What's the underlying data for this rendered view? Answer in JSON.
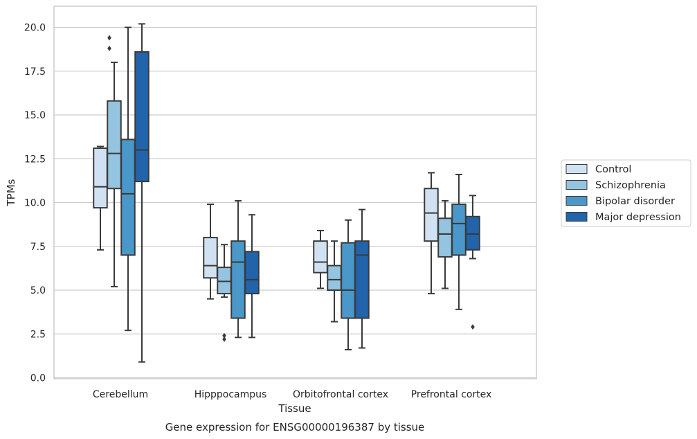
{
  "chart_data": {
    "type": "box",
    "title": "",
    "caption": "Gene expression for ENSG00000196387 by tissue",
    "xlabel": "Tissue",
    "ylabel": "TPMs",
    "ylim": [
      0,
      21.2
    ],
    "yticks": [
      "0.0",
      "2.5",
      "5.0",
      "7.5",
      "10.0",
      "12.5",
      "15.0",
      "17.5",
      "20.0"
    ],
    "grid": "horizontal",
    "legend_position": "right",
    "categories": [
      "Cerebellum",
      "Hipppocampus",
      "Orbitofrontal cortex",
      "Prefrontal cortex"
    ],
    "series": [
      {
        "name": "Control",
        "color": "#d0e1f2",
        "boxes": [
          {
            "whisker_low": 7.3,
            "q1": 9.7,
            "median": 10.9,
            "q3": 13.1,
            "whisker_high": 13.2,
            "outliers": []
          },
          {
            "whisker_low": 4.5,
            "q1": 5.7,
            "median": 6.4,
            "q3": 8.0,
            "whisker_high": 9.9,
            "outliers": []
          },
          {
            "whisker_low": 5.1,
            "q1": 6.0,
            "median": 6.6,
            "q3": 7.8,
            "whisker_high": 8.4,
            "outliers": []
          },
          {
            "whisker_low": 4.8,
            "q1": 7.8,
            "median": 9.4,
            "q3": 10.8,
            "whisker_high": 11.7,
            "outliers": []
          }
        ]
      },
      {
        "name": "Schizophrenia",
        "color": "#94c4df",
        "boxes": [
          {
            "whisker_low": 5.2,
            "q1": 10.8,
            "median": 12.8,
            "q3": 15.8,
            "whisker_high": 18.0,
            "outliers": []
          },
          {
            "whisker_low": 4.6,
            "q1": 4.8,
            "median": 5.5,
            "q3": 6.3,
            "whisker_high": 7.6,
            "outliers": [
              2.2,
              2.4
            ]
          },
          {
            "whisker_low": 3.2,
            "q1": 5.0,
            "median": 5.6,
            "q3": 6.4,
            "whisker_high": 7.8,
            "outliers": []
          },
          {
            "whisker_low": 5.1,
            "q1": 6.9,
            "median": 8.2,
            "q3": 9.1,
            "whisker_high": 10.1,
            "outliers": []
          }
        ]
      },
      {
        "name": "Bipolar disorder",
        "color": "#4a98c9",
        "boxes": [
          {
            "whisker_low": 2.7,
            "q1": 7.0,
            "median": 10.5,
            "q3": 13.6,
            "whisker_high": 20.0,
            "outliers": []
          },
          {
            "whisker_low": 2.3,
            "q1": 3.4,
            "median": 6.6,
            "q3": 7.8,
            "whisker_high": 10.1,
            "outliers": []
          },
          {
            "whisker_low": 1.6,
            "q1": 3.4,
            "median": 5.0,
            "q3": 7.7,
            "whisker_high": 9.0,
            "outliers": []
          },
          {
            "whisker_low": 3.9,
            "q1": 7.0,
            "median": 8.8,
            "q3": 9.9,
            "whisker_high": 11.6,
            "outliers": []
          }
        ]
      },
      {
        "name": "Major depression",
        "color": "#2164ab",
        "boxes": [
          {
            "whisker_low": 0.9,
            "q1": 11.2,
            "median": 13.0,
            "q3": 18.6,
            "whisker_high": 20.2,
            "outliers": []
          },
          {
            "whisker_low": 2.3,
            "q1": 4.8,
            "median": 5.6,
            "q3": 7.2,
            "whisker_high": 9.3,
            "outliers": []
          },
          {
            "whisker_low": 1.7,
            "q1": 3.4,
            "median": 7.0,
            "q3": 7.8,
            "whisker_high": 9.6,
            "outliers": []
          },
          {
            "whisker_low": 6.8,
            "q1": 7.3,
            "median": 8.2,
            "q3": 9.2,
            "whisker_high": 10.4,
            "outliers": [
              2.9
            ]
          }
        ]
      }
    ],
    "cerebellum_control_outliers": [
      18.8,
      19.4
    ]
  }
}
